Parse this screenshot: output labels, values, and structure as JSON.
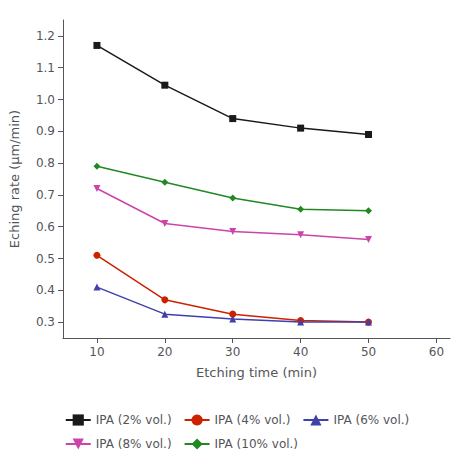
{
  "chart_data": {
    "type": "line",
    "x": [
      10,
      20,
      30,
      40,
      50
    ],
    "series": [
      {
        "name": "IPA (2% vol.)",
        "values": [
          1.17,
          1.045,
          0.94,
          0.91,
          0.89
        ],
        "color": "#1a1a1a",
        "marker": "square",
        "line_style": "solid"
      },
      {
        "name": "IPA (4% vol.)",
        "values": [
          0.51,
          0.37,
          0.325,
          0.305,
          0.3
        ],
        "color": "#cc2200",
        "marker": "circle",
        "line_style": "solid"
      },
      {
        "name": "IPA (6% vol.)",
        "values": [
          0.41,
          0.325,
          0.31,
          0.3,
          0.3
        ],
        "color": "#4040aa",
        "marker": "triangle-up",
        "line_style": "solid"
      },
      {
        "name": "IPA (8% vol.)",
        "values": [
          0.72,
          0.61,
          0.585,
          0.575,
          0.56
        ],
        "color": "#cc44aa",
        "marker": "triangle-down",
        "line_style": "solid"
      },
      {
        "name": "IPA (10% vol.)",
        "values": [
          0.79,
          0.74,
          0.69,
          0.655,
          0.65
        ],
        "color": "#228822",
        "marker": "diamond",
        "line_style": "solid"
      }
    ],
    "xlabel": "Etching time (min)",
    "ylabel": "Eching rate (μm/min)",
    "xlim": [
      5,
      62
    ],
    "ylim": [
      0.25,
      1.25
    ],
    "xticks": [
      10,
      20,
      30,
      40,
      50,
      60
    ],
    "yticks": [
      0.3,
      0.4,
      0.5,
      0.6,
      0.7,
      0.8,
      0.9,
      {
        "value": 1,
        "label": "1.0"
      },
      1.1,
      1.2
    ],
    "grid": false,
    "legend": "bottom"
  }
}
